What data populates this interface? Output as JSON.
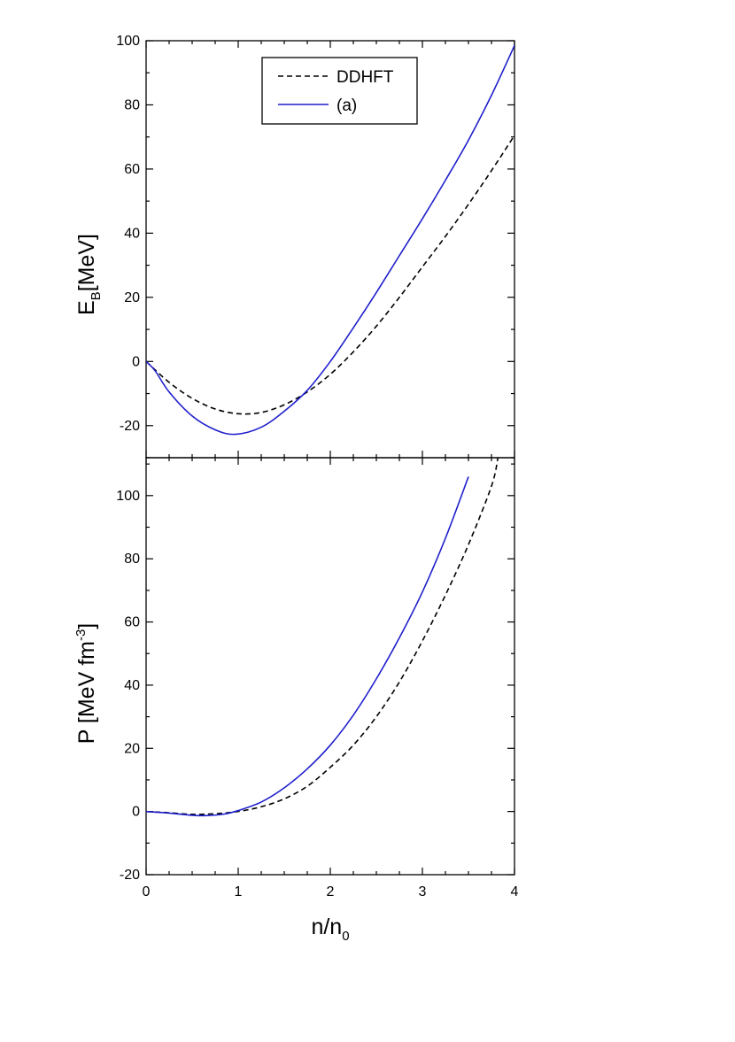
{
  "chart_data": [
    {
      "type": "line",
      "panel": "top",
      "ylabel": {
        "main": "E",
        "sub": "B",
        "rest": "[MeV]"
      },
      "xlim": [
        0,
        4
      ],
      "ylim": [
        -30,
        100
      ],
      "yticks": [
        -20,
        0,
        20,
        40,
        60,
        80,
        100
      ],
      "yticks_minor_step": 10,
      "xticks_minor_step": 0.25,
      "grid": false,
      "legend_position": "top-center",
      "series": [
        {
          "name": "DDHFT",
          "style": "dashed",
          "color": "#000000",
          "points": [
            [
              0,
              0
            ],
            [
              0.25,
              -6.5
            ],
            [
              0.5,
              -11.5
            ],
            [
              0.75,
              -14.8
            ],
            [
              1.0,
              -16.3
            ],
            [
              1.25,
              -15.9
            ],
            [
              1.5,
              -13.5
            ],
            [
              1.75,
              -9.5
            ],
            [
              2.0,
              -4.0
            ],
            [
              2.25,
              3.0
            ],
            [
              2.5,
              11.0
            ],
            [
              2.75,
              20.0
            ],
            [
              3.0,
              29.5
            ],
            [
              3.25,
              39.0
            ],
            [
              3.5,
              49.0
            ],
            [
              3.75,
              59.5
            ],
            [
              4.0,
              70.5
            ]
          ]
        },
        {
          "name": "(a)",
          "style": "solid",
          "color": "#1f1fcc",
          "points": [
            [
              0,
              0
            ],
            [
              0.1,
              -3.0
            ],
            [
              0.25,
              -9.5
            ],
            [
              0.5,
              -17.0
            ],
            [
              0.75,
              -21.3
            ],
            [
              0.97,
              -22.7
            ],
            [
              1.25,
              -20.5
            ],
            [
              1.5,
              -15.5
            ],
            [
              1.75,
              -9.0
            ],
            [
              2.0,
              0.0
            ],
            [
              2.25,
              10.5
            ],
            [
              2.5,
              21.5
            ],
            [
              2.75,
              33.0
            ],
            [
              3.0,
              44.5
            ],
            [
              3.25,
              56.5
            ],
            [
              3.5,
              69.0
            ],
            [
              3.75,
              83.0
            ],
            [
              4.0,
              98.5
            ]
          ]
        }
      ]
    },
    {
      "type": "line",
      "panel": "bottom",
      "xlabel": {
        "main": "n/n",
        "sub": "0"
      },
      "ylabel": {
        "main": "P [MeV fm",
        "sup": "-3",
        "rest": "]"
      },
      "xlim": [
        0,
        4
      ],
      "ylim": [
        -20,
        112
      ],
      "xticks": [
        0,
        1,
        2,
        3,
        4
      ],
      "yticks": [
        -20,
        0,
        20,
        40,
        60,
        80,
        100
      ],
      "yticks_minor_step": 10,
      "xticks_minor_step": 0.25,
      "grid": false,
      "series": [
        {
          "name": "DDHFT",
          "style": "dashed",
          "color": "#000000",
          "points": [
            [
              0,
              0
            ],
            [
              0.25,
              -0.4
            ],
            [
              0.5,
              -0.9
            ],
            [
              0.75,
              -0.7
            ],
            [
              1.0,
              0.0
            ],
            [
              1.25,
              1.5
            ],
            [
              1.5,
              4.0
            ],
            [
              1.75,
              8.0
            ],
            [
              2.0,
              14.0
            ],
            [
              2.25,
              21.0
            ],
            [
              2.5,
              30.0
            ],
            [
              2.75,
              41.0
            ],
            [
              3.0,
              54.0
            ],
            [
              3.25,
              68.5
            ],
            [
              3.5,
              84.5
            ],
            [
              3.75,
              103.0
            ],
            [
              3.82,
              112.0
            ]
          ]
        },
        {
          "name": "(a)",
          "style": "solid",
          "color": "#1f1fcc",
          "points": [
            [
              0,
              0
            ],
            [
              0.25,
              -0.5
            ],
            [
              0.5,
              -1.2
            ],
            [
              0.65,
              -1.3
            ],
            [
              0.85,
              -0.8
            ],
            [
              1.0,
              0.3
            ],
            [
              1.25,
              3.0
            ],
            [
              1.5,
              7.5
            ],
            [
              1.75,
              13.5
            ],
            [
              2.0,
              21.0
            ],
            [
              2.25,
              30.5
            ],
            [
              2.5,
              42.0
            ],
            [
              2.75,
              55.0
            ],
            [
              3.0,
              69.5
            ],
            [
              3.25,
              86.5
            ],
            [
              3.5,
              106.0
            ]
          ]
        }
      ]
    }
  ]
}
